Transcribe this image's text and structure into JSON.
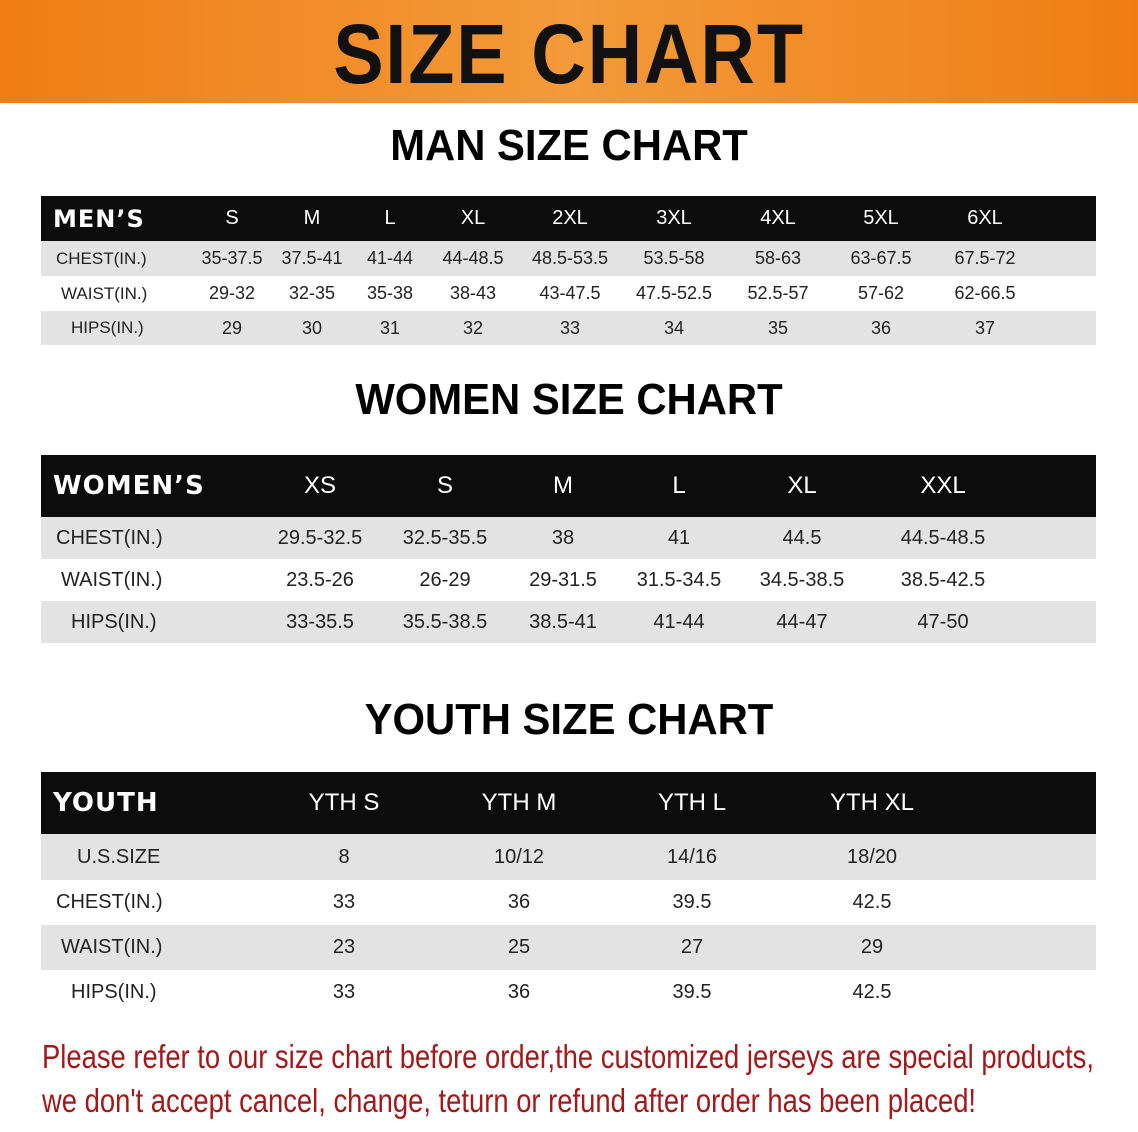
{
  "banner": {
    "title": "SIZE CHART",
    "color": "#f08a1e"
  },
  "men": {
    "title": "MAN SIZE CHART",
    "header_label": "MEN’S",
    "sizes": [
      "S",
      "M",
      "L",
      "XL",
      "2XL",
      "3XL",
      "4XL",
      "5XL",
      "6XL"
    ],
    "rows": [
      {
        "label": "CHEST(IN.)",
        "values": [
          "35-37.5",
          "37.5-41",
          "41-44",
          "44-48.5",
          "48.5-53.5",
          "53.5-58",
          "58-63",
          "63-67.5",
          "67.5-72"
        ]
      },
      {
        "label": "WAIST(IN.)",
        "values": [
          "29-32",
          "32-35",
          "35-38",
          "38-43",
          "43-47.5",
          "47.5-52.5",
          "52.5-57",
          "57-62",
          "62-66.5"
        ]
      },
      {
        "label": "HIPS(IN.)",
        "values": [
          "29",
          "30",
          "31",
          "32",
          "33",
          "34",
          "35",
          "36",
          "37"
        ]
      }
    ]
  },
  "women": {
    "title": "WOMEN SIZE CHART",
    "header_label": "WOMEN’S",
    "sizes": [
      "XS",
      "S",
      "M",
      "L",
      "XL",
      "XXL"
    ],
    "rows": [
      {
        "label": "CHEST(IN.)",
        "values": [
          "29.5-32.5",
          "32.5-35.5",
          "38",
          "41",
          "44.5",
          "44.5-48.5"
        ]
      },
      {
        "label": "WAIST(IN.)",
        "values": [
          "23.5-26",
          "26-29",
          "29-31.5",
          "31.5-34.5",
          "34.5-38.5",
          "38.5-42.5"
        ]
      },
      {
        "label": "HIPS(IN.)",
        "values": [
          "33-35.5",
          "35.5-38.5",
          "38.5-41",
          "41-44",
          "44-47",
          "47-50"
        ]
      }
    ]
  },
  "youth": {
    "title": "YOUTH SIZE CHART",
    "header_label": "YOUTH",
    "sizes": [
      "YTH S",
      "YTH M",
      "YTH L",
      "YTH XL"
    ],
    "rows": [
      {
        "label": "U.S.SIZE",
        "values": [
          "8",
          "10/12",
          "14/16",
          "18/20"
        ]
      },
      {
        "label": "CHEST(IN.)",
        "values": [
          "33",
          "36",
          "39.5",
          "42.5"
        ]
      },
      {
        "label": "WAIST(IN.)",
        "values": [
          "23",
          "25",
          "27",
          "29"
        ]
      },
      {
        "label": "HIPS(IN.)",
        "values": [
          "33",
          "36",
          "39.5",
          "42.5"
        ]
      }
    ]
  },
  "notice": {
    "line1": "Please refer to our size chart before order,the customized jerseys are special products,",
    "line2": "we don't accept cancel, change, teturn or refund after order has been placed!",
    "color": "#a3191b"
  }
}
